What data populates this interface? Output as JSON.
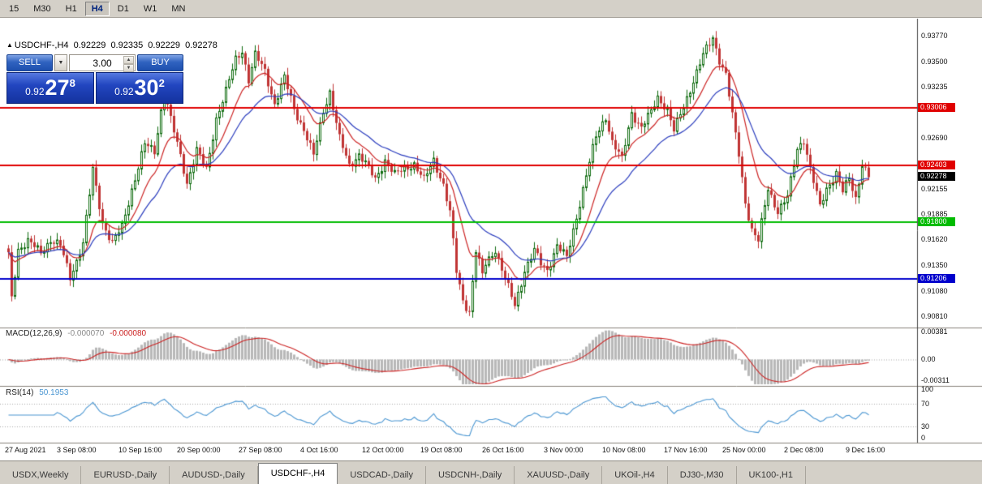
{
  "colors": {
    "chrome": "#d4d0c8",
    "chart_bg": "#ffffff",
    "bull": "#0e6b0e",
    "bear": "#c03434",
    "ma_fast": "#cc2222",
    "ma_slow": "#2a3cbe",
    "macd_hist": "#b8b8b8",
    "macd_signal": "#cc2222",
    "rsi_line": "#4a96d2",
    "current_tag": "#000000"
  },
  "toolbar": {
    "timeframes": [
      {
        "label": "15",
        "active": false
      },
      {
        "label": "M30",
        "active": false
      },
      {
        "label": "H1",
        "active": false
      },
      {
        "label": "H4",
        "active": true
      },
      {
        "label": "D1",
        "active": false
      },
      {
        "label": "W1",
        "active": false
      },
      {
        "label": "MN",
        "active": false
      }
    ]
  },
  "title": {
    "marker": "▲",
    "symbol": "USDCHF-,H4",
    "open": "0.92229",
    "high": "0.92335",
    "low": "0.92229",
    "close": "0.92278"
  },
  "trade_panel": {
    "sell_label": "SELL",
    "buy_label": "BUY",
    "volume": "3.00",
    "sell_price": {
      "prefix": "0.92",
      "big": "27",
      "sup": "8"
    },
    "buy_price": {
      "prefix": "0.92",
      "big": "30",
      "sup": "2"
    }
  },
  "indicators": {
    "macd": {
      "label": "MACD(12,26,9)",
      "value1": "-0.000070",
      "value2": "-0.000080",
      "axis": [
        {
          "text": "0.00381",
          "v": 0.00381
        },
        {
          "text": "0.00",
          "v": 0
        },
        {
          "text": "-0.00311",
          "v": -0.00311
        }
      ]
    },
    "rsi": {
      "label": "RSI(14)",
      "value": "50.1953",
      "levels": [
        70,
        30
      ],
      "axis": [
        {
          "text": "100",
          "v": 100
        },
        {
          "text": "70",
          "v": 70
        },
        {
          "text": "30",
          "v": 30
        },
        {
          "text": "0",
          "v": 0
        }
      ]
    }
  },
  "chart_data": {
    "type": "candlestick",
    "symbol": "USDCHF-",
    "timeframe": "H4",
    "current_price": 0.92278,
    "current_price_text": "0.92278",
    "current_candle": {
      "open": 0.92229,
      "high": 0.92335,
      "low": 0.92229,
      "close": 0.92278
    },
    "price_axis": {
      "min": 0.907,
      "max": 0.9395,
      "labels": [
        {
          "text": "0.93770",
          "p": 0.9377
        },
        {
          "text": "0.93500",
          "p": 0.935
        },
        {
          "text": "0.93235",
          "p": 0.93235
        },
        {
          "text": "0.92690",
          "p": 0.9269
        },
        {
          "text": "0.92155",
          "p": 0.92155
        },
        {
          "text": "0.91885",
          "p": 0.91885
        },
        {
          "text": "0.91620",
          "p": 0.9162
        },
        {
          "text": "0.91350",
          "p": 0.9135
        },
        {
          "text": "0.91080",
          "p": 0.9108
        },
        {
          "text": "0.90810",
          "p": 0.9081
        }
      ]
    },
    "hlines": [
      {
        "price": 0.93006,
        "text": "0.93006",
        "color": "#e00000"
      },
      {
        "price": 0.92403,
        "text": "0.92403",
        "color": "#e00000"
      },
      {
        "price": 0.918,
        "text": "0.91800",
        "color": "#00bb00"
      },
      {
        "price": 0.91206,
        "text": "0.91206",
        "color": "#0000cc"
      }
    ],
    "moving_averages": [
      {
        "period": 12,
        "color": "#cc2222"
      },
      {
        "period": 26,
        "color": "#2a3cbe"
      }
    ],
    "candle_count": 266,
    "anchors": [
      [
        0,
        0.9145
      ],
      [
        1,
        0.91
      ],
      [
        3,
        0.9152
      ],
      [
        6,
        0.916
      ],
      [
        10,
        0.9148
      ],
      [
        13,
        0.9162
      ],
      [
        16,
        0.9155
      ],
      [
        19,
        0.9122
      ],
      [
        23,
        0.9158
      ],
      [
        26,
        0.9235
      ],
      [
        29,
        0.918
      ],
      [
        32,
        0.9158
      ],
      [
        35,
        0.9175
      ],
      [
        38,
        0.9215
      ],
      [
        42,
        0.9262
      ],
      [
        45,
        0.9255
      ],
      [
        48,
        0.932
      ],
      [
        50,
        0.9288
      ],
      [
        53,
        0.925
      ],
      [
        55,
        0.9222
      ],
      [
        58,
        0.9256
      ],
      [
        61,
        0.9235
      ],
      [
        64,
        0.929
      ],
      [
        67,
        0.9318
      ],
      [
        70,
        0.9352
      ],
      [
        72,
        0.9362
      ],
      [
        74,
        0.933
      ],
      [
        76,
        0.9356
      ],
      [
        79,
        0.934
      ],
      [
        82,
        0.9305
      ],
      [
        85,
        0.9332
      ],
      [
        88,
        0.93
      ],
      [
        91,
        0.9278
      ],
      [
        94,
        0.925
      ],
      [
        97,
        0.9298
      ],
      [
        99,
        0.9318
      ],
      [
        102,
        0.9268
      ],
      [
        105,
        0.924
      ],
      [
        108,
        0.9252
      ],
      [
        110,
        0.9242
      ],
      [
        113,
        0.9225
      ],
      [
        116,
        0.9246
      ],
      [
        119,
        0.923
      ],
      [
        122,
        0.9237
      ],
      [
        125,
        0.9242
      ],
      [
        128,
        0.9224
      ],
      [
        131,
        0.9246
      ],
      [
        134,
        0.922
      ],
      [
        136,
        0.919
      ],
      [
        138,
        0.9128
      ],
      [
        140,
        0.9098
      ],
      [
        142,
        0.9086
      ],
      [
        144,
        0.915
      ],
      [
        146,
        0.9124
      ],
      [
        147,
        0.9136
      ],
      [
        150,
        0.9152
      ],
      [
        153,
        0.912
      ],
      [
        156,
        0.9092
      ],
      [
        159,
        0.913
      ],
      [
        162,
        0.915
      ],
      [
        164,
        0.9136
      ],
      [
        166,
        0.913
      ],
      [
        169,
        0.9156
      ],
      [
        172,
        0.9142
      ],
      [
        175,
        0.9186
      ],
      [
        178,
        0.923
      ],
      [
        181,
        0.927
      ],
      [
        184,
        0.9292
      ],
      [
        186,
        0.9265
      ],
      [
        189,
        0.9246
      ],
      [
        192,
        0.9296
      ],
      [
        195,
        0.928
      ],
      [
        198,
        0.9296
      ],
      [
        200,
        0.9312
      ],
      [
        203,
        0.93
      ],
      [
        205,
        0.9276
      ],
      [
        208,
        0.9302
      ],
      [
        211,
        0.933
      ],
      [
        214,
        0.9356
      ],
      [
        217,
        0.9375
      ],
      [
        219,
        0.9352
      ],
      [
        221,
        0.9336
      ],
      [
        223,
        0.9292
      ],
      [
        225,
        0.9252
      ],
      [
        227,
        0.9202
      ],
      [
        229,
        0.9172
      ],
      [
        231,
        0.916
      ],
      [
        234,
        0.9216
      ],
      [
        237,
        0.9192
      ],
      [
        240,
        0.9206
      ],
      [
        243,
        0.9258
      ],
      [
        245,
        0.9268
      ],
      [
        247,
        0.9236
      ],
      [
        250,
        0.9196
      ],
      [
        252,
        0.9216
      ],
      [
        255,
        0.9232
      ],
      [
        257,
        0.9212
      ],
      [
        259,
        0.9226
      ],
      [
        261,
        0.9206
      ],
      [
        263,
        0.9242
      ],
      [
        265,
        0.92278
      ]
    ],
    "time_labels": [
      {
        "text": "27 Aug 2021",
        "i": 0
      },
      {
        "text": "3 Sep 08:00",
        "i": 16
      },
      {
        "text": "10 Sep 16:00",
        "i": 35
      },
      {
        "text": "20 Sep 00:00",
        "i": 53
      },
      {
        "text": "27 Sep 08:00",
        "i": 72
      },
      {
        "text": "4 Oct 16:00",
        "i": 91
      },
      {
        "text": "12 Oct 00:00",
        "i": 110
      },
      {
        "text": "19 Oct 08:00",
        "i": 128
      },
      {
        "text": "26 Oct 16:00",
        "i": 147
      },
      {
        "text": "3 Nov 00:00",
        "i": 166
      },
      {
        "text": "10 Nov 08:00",
        "i": 184
      },
      {
        "text": "17 Nov 16:00",
        "i": 203
      },
      {
        "text": "25 Nov 00:00",
        "i": 221
      },
      {
        "text": "2 Dec 08:00",
        "i": 240
      },
      {
        "text": "9 Dec 16:00",
        "i": 259
      }
    ]
  },
  "tabs": {
    "active_index": 3,
    "items": [
      "USDX,Weekly",
      "EURUSD-,Daily",
      "AUDUSD-,Daily",
      "USDCHF-,H4",
      "USDCAD-,Daily",
      "USDCNH-,Daily",
      "XAUUSD-,Daily",
      "UKOil-,H4",
      "DJ30-,M30",
      "UK100-,H1"
    ]
  }
}
